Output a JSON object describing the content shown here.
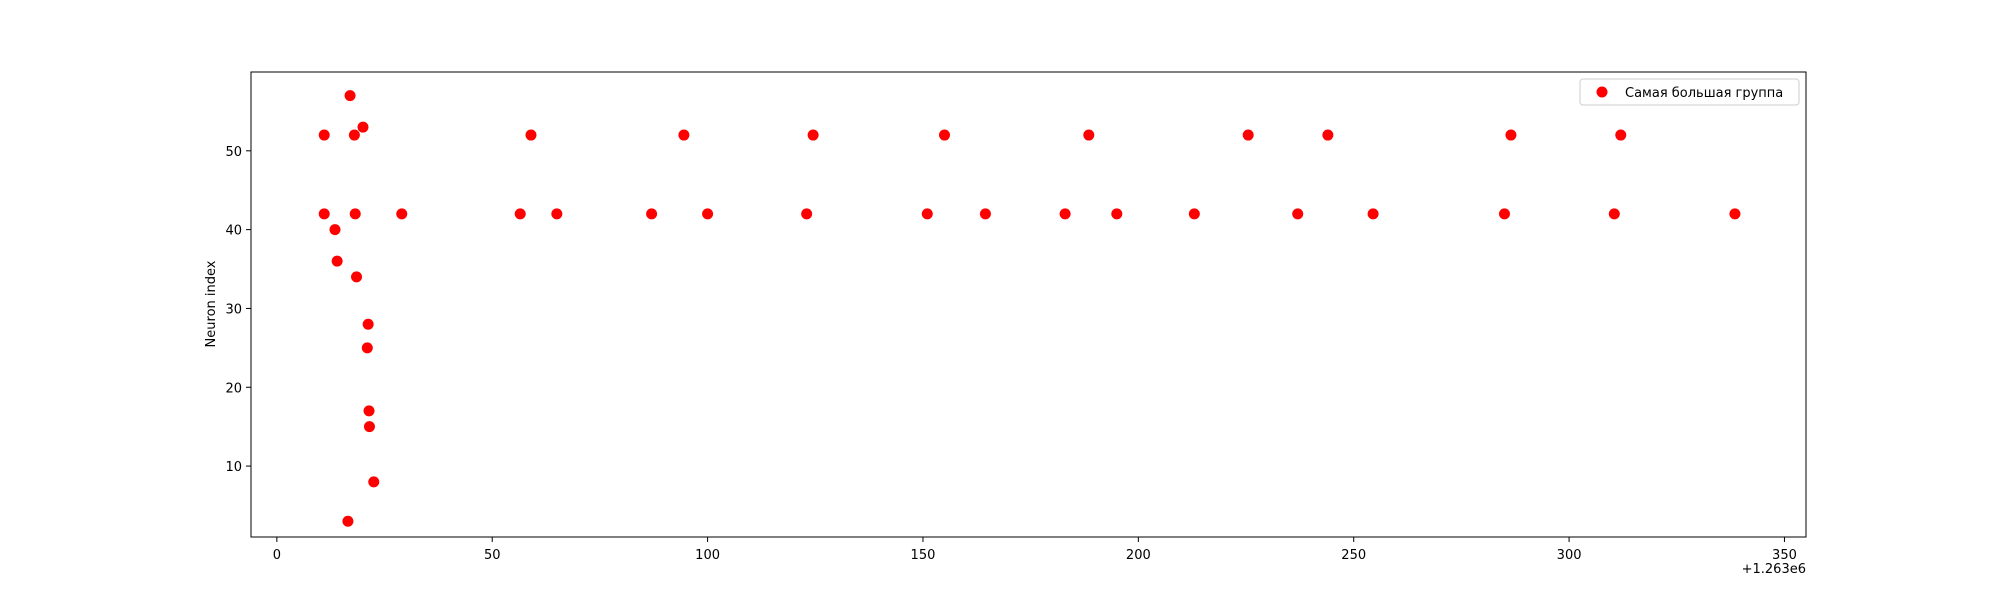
{
  "chart_data": {
    "type": "scatter",
    "title": "",
    "xlabel": "",
    "ylabel": "Neuron index",
    "x_offset_label": "+1.263e6",
    "xlim": [
      -6,
      355
    ],
    "ylim": [
      1,
      60
    ],
    "xticks": [
      0,
      50,
      100,
      150,
      200,
      250,
      300,
      350
    ],
    "xtick_labels": [
      "0",
      "50",
      "100",
      "150",
      "200",
      "250",
      "300",
      "350"
    ],
    "yticks": [
      10,
      20,
      30,
      40,
      50
    ],
    "ytick_labels": [
      "10",
      "20",
      "30",
      "40",
      "50"
    ],
    "grid": false,
    "legend_position": "top-right",
    "series": [
      {
        "name": "Самая большая группа",
        "color": "#ff0000",
        "x": [
          11,
          11,
          13.5,
          14,
          16.5,
          17,
          18,
          18.2,
          18.5,
          20,
          21,
          21.2,
          21.4,
          21.5,
          22.5,
          29,
          56.5,
          59,
          65,
          87,
          94.5,
          100,
          123,
          124.5,
          151,
          155,
          164.5,
          183,
          188.5,
          195,
          213,
          225.5,
          237,
          244,
          254.5,
          285,
          286.5,
          310.5,
          312,
          338.5
        ],
        "y": [
          52,
          42,
          40,
          36,
          3,
          57,
          52,
          42,
          34,
          53,
          25,
          28,
          17,
          15,
          8,
          42,
          42,
          52,
          42,
          42,
          52,
          42,
          42,
          52,
          42,
          52,
          42,
          42,
          52,
          42,
          42,
          52,
          42,
          52,
          42,
          42,
          52,
          42,
          52,
          42
        ]
      }
    ]
  }
}
